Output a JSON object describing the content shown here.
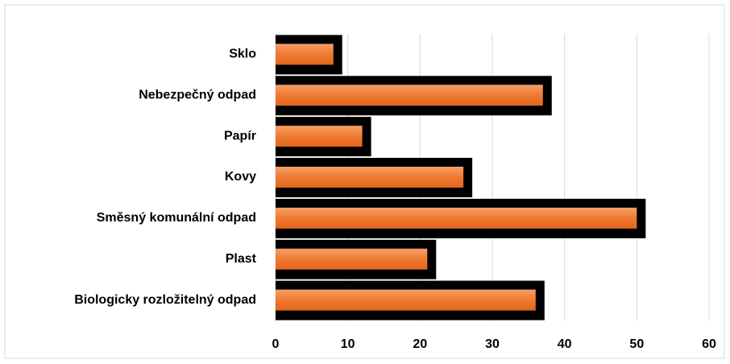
{
  "chart_data": {
    "type": "barh",
    "categories": [
      "Sklo",
      "Nebezpečný odpad",
      "Papír",
      "Kovy",
      "Směsný komunální odpad",
      "Plast",
      "Biologicky rozložitelný odpad"
    ],
    "values": [
      8,
      37,
      12,
      26,
      50,
      21,
      36
    ],
    "color": "#f07a30",
    "xlim": [
      0,
      60
    ],
    "xticks": [
      0,
      10,
      20,
      30,
      40,
      50,
      60
    ],
    "grid": true
  }
}
